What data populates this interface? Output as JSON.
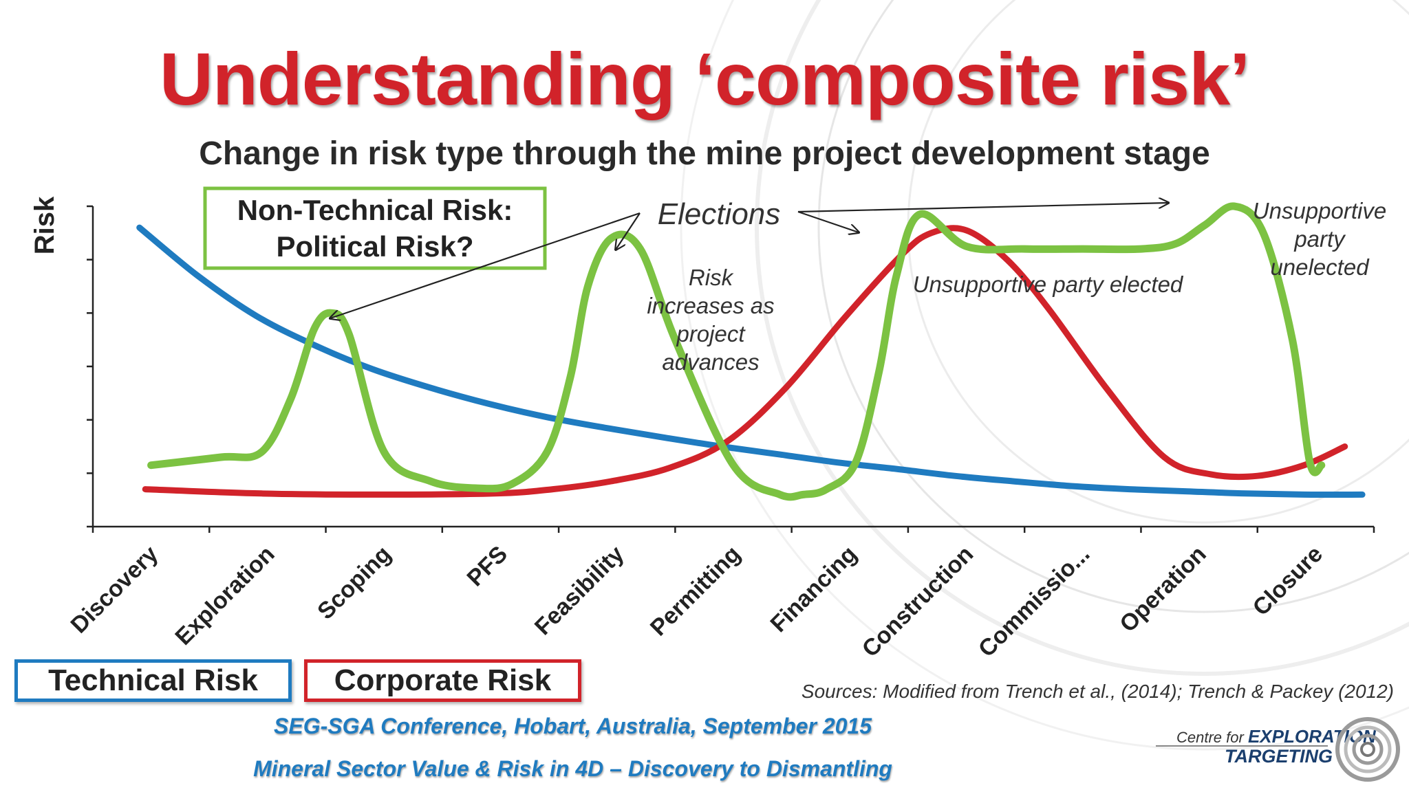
{
  "title": "Understanding ‘composite risk’",
  "subtitle": "Change in risk type through the mine project development stage",
  "legend": {
    "technical": "Technical Risk",
    "corporate": "Corporate Risk"
  },
  "sources": "Sources: Modified from Trench et al., (2014); Trench & Packey (2012)",
  "conference": {
    "line1": "SEG-SGA Conference, Hobart, Australia, September 2015",
    "line2": "Mineral Sector Value & Risk in 4D – Discovery to Dismantling"
  },
  "logo": {
    "prefix": "Centre for",
    "line1": "EXPLORATION",
    "line2": "TARGETING"
  },
  "colors": {
    "technical": "#1f7bc0",
    "corporate": "#d1232a",
    "political": "#7cc242",
    "title": "#d1232a"
  },
  "chart_data": {
    "type": "line",
    "title": "",
    "ylabel": "Risk",
    "xlabel": "",
    "categories": [
      "Discovery",
      "Exploration",
      "Scoping",
      "PFS",
      "Feasibility",
      "Permitting",
      "Financing",
      "Construction",
      "Commissio...",
      "Operation",
      "Closure"
    ],
    "ylim": [
      0,
      6
    ],
    "yticks": 6,
    "series": [
      {
        "name": "Technical Risk",
        "color": "#1f7bc0",
        "x": [
          0.4,
          0.9,
          1.4,
          1.9,
          2.4,
          2.9,
          3.4,
          3.9,
          4.4,
          4.9,
          5.4,
          5.9,
          6.4,
          6.9,
          7.4,
          7.9,
          8.4,
          8.9,
          9.4,
          9.9,
          10.4,
          10.9
        ],
        "y": [
          5.6,
          4.7,
          3.95,
          3.4,
          2.95,
          2.6,
          2.3,
          2.05,
          1.85,
          1.67,
          1.5,
          1.35,
          1.2,
          1.08,
          0.95,
          0.85,
          0.76,
          0.7,
          0.66,
          0.62,
          0.6,
          0.6
        ]
      },
      {
        "name": "Corporate Risk",
        "color": "#d1232a",
        "x": [
          0.45,
          1.45,
          2.45,
          3.45,
          3.95,
          4.45,
          4.95,
          5.45,
          5.95,
          6.45,
          6.95,
          7.2,
          7.5,
          7.85,
          8.2,
          8.7,
          9.2,
          9.6,
          10.0,
          10.4,
          10.75
        ],
        "y": [
          0.7,
          0.62,
          0.6,
          0.62,
          0.7,
          0.85,
          1.1,
          1.6,
          2.6,
          3.9,
          5.1,
          5.5,
          5.55,
          5.0,
          4.1,
          2.6,
          1.3,
          0.98,
          0.95,
          1.15,
          1.5
        ]
      },
      {
        "name": "",
        "color": "#7cc242",
        "x": [
          0.5,
          1.1,
          1.45,
          1.7,
          1.9,
          2.05,
          2.2,
          2.5,
          2.9,
          3.3,
          3.6,
          3.9,
          4.1,
          4.25,
          4.45,
          4.7,
          5.0,
          5.5,
          5.9,
          6.1,
          6.3,
          6.55,
          6.75,
          6.9,
          7.1,
          7.5,
          8.0,
          8.5,
          9.0,
          9.3,
          9.55,
          9.8,
          10.05,
          10.3,
          10.45,
          10.55
        ],
        "y": [
          1.15,
          1.3,
          1.4,
          2.4,
          3.7,
          4.0,
          3.6,
          1.4,
          0.85,
          0.72,
          0.8,
          1.4,
          2.8,
          4.5,
          5.4,
          5.2,
          3.5,
          1.15,
          0.6,
          0.6,
          0.7,
          1.2,
          2.9,
          4.7,
          5.85,
          5.25,
          5.2,
          5.2,
          5.2,
          5.3,
          5.65,
          6.0,
          5.5,
          3.5,
          1.2,
          1.15
        ]
      }
    ],
    "annotations": [
      {
        "text": "Non-Technical Risk:\nPolitical Risk?"
      },
      {
        "text": "Elections"
      },
      {
        "text": "Risk\nincreases as\nproject\nadvances"
      },
      {
        "text": "Unsupportive party elected"
      },
      {
        "text": "Unsupportive\nparty\nunelected"
      }
    ]
  }
}
